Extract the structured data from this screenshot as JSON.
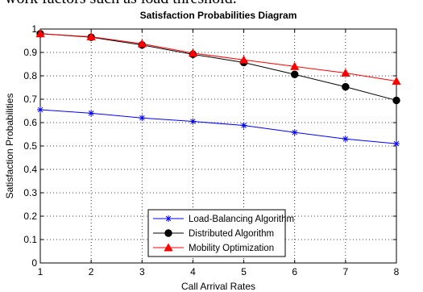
{
  "page": {
    "header_text": "work factors such as load threshold."
  },
  "chart_data": {
    "type": "line",
    "title": "Satisfaction Probabilities Diagram",
    "xlabel": "Call Arrival Rates",
    "ylabel": "Satisfaction Probabilities",
    "xlim": [
      1,
      8
    ],
    "ylim": [
      0,
      1
    ],
    "x_ticks": [
      "1",
      "2",
      "3",
      "4",
      "5",
      "6",
      "7",
      "8"
    ],
    "y_ticks": [
      "0",
      "0.1",
      "0.2",
      "0.3",
      "0.4",
      "0.5",
      "0.6",
      "0.7",
      "0.8",
      "0.9",
      "1"
    ],
    "grid": true,
    "legend_position": "bottom-center",
    "x": [
      1,
      2,
      3,
      4,
      5,
      6,
      7,
      8
    ],
    "series": [
      {
        "name": "Load-Balancing Algorithm",
        "values": [
          0.655,
          0.64,
          0.62,
          0.605,
          0.588,
          0.558,
          0.53,
          0.51
        ],
        "color": "#0000ff",
        "marker": "star"
      },
      {
        "name": "Distributed Algorithm",
        "values": [
          0.98,
          0.965,
          0.932,
          0.892,
          0.857,
          0.806,
          0.753,
          0.695
        ],
        "color": "#000000",
        "marker": "circle"
      },
      {
        "name": "Mobility Optimization",
        "values": [
          0.98,
          0.967,
          0.937,
          0.897,
          0.868,
          0.84,
          0.812,
          0.777
        ],
        "color": "#ff0000",
        "marker": "triangle"
      }
    ]
  }
}
